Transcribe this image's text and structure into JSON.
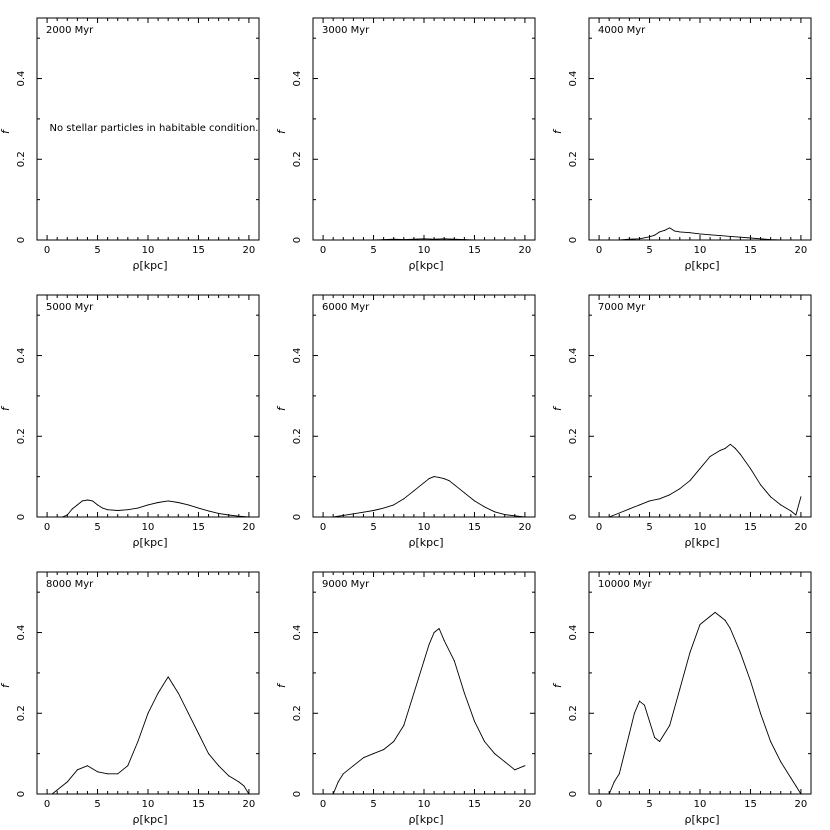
{
  "chart_data": [
    {
      "type": "line",
      "label": "2000 Myr",
      "xlabel": "ρ[kpc]",
      "ylabel": "f",
      "xlim": [
        -1,
        21
      ],
      "ylim": [
        0,
        0.55
      ],
      "xticks": [
        "0",
        "5",
        "10",
        "15",
        "20"
      ],
      "yticks": [
        "0",
        "0.2",
        "0.4"
      ],
      "annotation": "No stellar particles in habitable condition.",
      "series": [
        {
          "x": [],
          "y": []
        }
      ]
    },
    {
      "type": "line",
      "label": "3000 Myr",
      "xlabel": "ρ[kpc]",
      "ylabel": "f",
      "xlim": [
        -1,
        21
      ],
      "ylim": [
        0,
        0.55
      ],
      "xticks": [
        "0",
        "5",
        "10",
        "15",
        "20"
      ],
      "yticks": [
        "0",
        "0.2",
        "0.4"
      ],
      "series": [
        {
          "x": [
            5,
            6,
            7,
            8,
            9,
            10,
            11,
            12,
            13,
            14,
            15
          ],
          "y": [
            0,
            0.001,
            0.002,
            0.001,
            0.002,
            0.003,
            0.002,
            0.003,
            0.002,
            0.001,
            0
          ]
        }
      ]
    },
    {
      "type": "line",
      "label": "4000 Myr",
      "xlabel": "ρ[kpc]",
      "ylabel": "f",
      "xlim": [
        -1,
        21
      ],
      "ylim": [
        0,
        0.55
      ],
      "xticks": [
        "0",
        "5",
        "10",
        "15",
        "20"
      ],
      "yticks": [
        "0",
        "0.2",
        "0.4"
      ],
      "series": [
        {
          "x": [
            2,
            3,
            4,
            5,
            5.5,
            6,
            6.5,
            7,
            7.5,
            8,
            9,
            10,
            11,
            12,
            13,
            14,
            15,
            16,
            17,
            18
          ],
          "y": [
            0,
            0.002,
            0.003,
            0.008,
            0.012,
            0.02,
            0.024,
            0.03,
            0.022,
            0.02,
            0.018,
            0.015,
            0.013,
            0.011,
            0.009,
            0.007,
            0.005,
            0.003,
            0.001,
            0
          ]
        }
      ]
    },
    {
      "type": "line",
      "label": "5000 Myr",
      "xlabel": "ρ[kpc]",
      "ylabel": "f",
      "xlim": [
        -1,
        21
      ],
      "ylim": [
        0,
        0.55
      ],
      "xticks": [
        "0",
        "5",
        "10",
        "15",
        "20"
      ],
      "yticks": [
        "0",
        "0.2",
        "0.4"
      ],
      "series": [
        {
          "x": [
            1.5,
            2,
            2.5,
            3,
            3.5,
            4,
            4.5,
            5,
            5.5,
            6,
            7,
            8,
            9,
            10,
            11,
            12,
            13,
            14,
            15,
            16,
            17,
            18,
            19,
            20
          ],
          "y": [
            0,
            0.005,
            0.02,
            0.03,
            0.04,
            0.042,
            0.04,
            0.03,
            0.022,
            0.018,
            0.016,
            0.018,
            0.022,
            0.03,
            0.036,
            0.04,
            0.036,
            0.03,
            0.022,
            0.015,
            0.009,
            0.005,
            0.002,
            0
          ]
        }
      ]
    },
    {
      "type": "line",
      "label": "6000 Myr",
      "xlabel": "ρ[kpc]",
      "ylabel": "f",
      "xlim": [
        -1,
        21
      ],
      "ylim": [
        0,
        0.55
      ],
      "xticks": [
        "0",
        "5",
        "10",
        "15",
        "20"
      ],
      "yticks": [
        "0",
        "0.2",
        "0.4"
      ],
      "series": [
        {
          "x": [
            1,
            2,
            3,
            4,
            5,
            6,
            7,
            8,
            9,
            10,
            10.5,
            11,
            11.5,
            12,
            12.5,
            13,
            14,
            15,
            16,
            17,
            18,
            19,
            20
          ],
          "y": [
            0,
            0.004,
            0.008,
            0.012,
            0.016,
            0.022,
            0.03,
            0.045,
            0.065,
            0.085,
            0.095,
            0.1,
            0.098,
            0.095,
            0.09,
            0.08,
            0.06,
            0.04,
            0.025,
            0.013,
            0.006,
            0.003,
            0
          ]
        }
      ]
    },
    {
      "type": "line",
      "label": "7000 Myr",
      "xlabel": "ρ[kpc]",
      "ylabel": "f",
      "xlim": [
        -1,
        21
      ],
      "ylim": [
        0,
        0.55
      ],
      "xticks": [
        "0",
        "5",
        "10",
        "15",
        "20"
      ],
      "yticks": [
        "0",
        "0.2",
        "0.4"
      ],
      "series": [
        {
          "x": [
            1,
            2,
            3,
            4,
            5,
            6,
            7,
            8,
            9,
            10,
            11,
            12,
            12.5,
            13,
            13.5,
            14,
            15,
            16,
            17,
            18,
            19,
            19.5,
            20
          ],
          "y": [
            0,
            0.01,
            0.02,
            0.03,
            0.04,
            0.045,
            0.055,
            0.07,
            0.09,
            0.12,
            0.15,
            0.165,
            0.17,
            0.18,
            0.17,
            0.155,
            0.12,
            0.08,
            0.05,
            0.03,
            0.015,
            0.005,
            0.05
          ]
        }
      ]
    },
    {
      "type": "line",
      "label": "8000 Myr",
      "xlabel": "ρ[kpc]",
      "ylabel": "f",
      "xlim": [
        -1,
        21
      ],
      "ylim": [
        0,
        0.55
      ],
      "xticks": [
        "0",
        "5",
        "10",
        "15",
        "20"
      ],
      "yticks": [
        "0",
        "0.2",
        "0.4"
      ],
      "series": [
        {
          "x": [
            0.5,
            1,
            2,
            3,
            4,
            5,
            6,
            7,
            8,
            9,
            10,
            11,
            11.5,
            12,
            12.5,
            13,
            14,
            15,
            16,
            17,
            18,
            19,
            19.5,
            20
          ],
          "y": [
            0,
            0.01,
            0.03,
            0.06,
            0.07,
            0.055,
            0.05,
            0.05,
            0.07,
            0.13,
            0.2,
            0.25,
            0.27,
            0.29,
            0.27,
            0.25,
            0.2,
            0.15,
            0.1,
            0.07,
            0.045,
            0.03,
            0.02,
            0
          ]
        }
      ]
    },
    {
      "type": "line",
      "label": "9000 Myr",
      "xlabel": "ρ[kpc]",
      "ylabel": "f",
      "xlim": [
        -1,
        21
      ],
      "ylim": [
        0,
        0.55
      ],
      "xticks": [
        "0",
        "5",
        "10",
        "15",
        "20"
      ],
      "yticks": [
        "0",
        "0.2",
        "0.4"
      ],
      "series": [
        {
          "x": [
            1,
            1.5,
            2,
            3,
            4,
            5,
            6,
            7,
            8,
            9,
            10,
            10.5,
            11,
            11.5,
            12,
            13,
            14,
            15,
            16,
            17,
            18,
            19,
            20
          ],
          "y": [
            0,
            0.03,
            0.05,
            0.07,
            0.09,
            0.1,
            0.11,
            0.13,
            0.17,
            0.25,
            0.33,
            0.37,
            0.4,
            0.41,
            0.38,
            0.33,
            0.25,
            0.18,
            0.13,
            0.1,
            0.08,
            0.06,
            0.07
          ]
        }
      ]
    },
    {
      "type": "line",
      "label": "10000 Myr",
      "xlabel": "ρ[kpc]",
      "ylabel": "f",
      "xlim": [
        -1,
        21
      ],
      "ylim": [
        0,
        0.55
      ],
      "xticks": [
        "0",
        "5",
        "10",
        "15",
        "20"
      ],
      "yticks": [
        "0",
        "0.2",
        "0.4"
      ],
      "series": [
        {
          "x": [
            1,
            1.5,
            2,
            3,
            3.5,
            4,
            4.5,
            5,
            5.5,
            6,
            7,
            8,
            9,
            10,
            11,
            11.5,
            12,
            12.5,
            13,
            14,
            15,
            16,
            17,
            18,
            19,
            19.5,
            20
          ],
          "y": [
            0,
            0.03,
            0.05,
            0.15,
            0.2,
            0.23,
            0.22,
            0.18,
            0.14,
            0.13,
            0.17,
            0.26,
            0.35,
            0.42,
            0.44,
            0.45,
            0.44,
            0.43,
            0.41,
            0.35,
            0.28,
            0.2,
            0.13,
            0.08,
            0.04,
            0.02,
            0
          ]
        }
      ]
    }
  ]
}
